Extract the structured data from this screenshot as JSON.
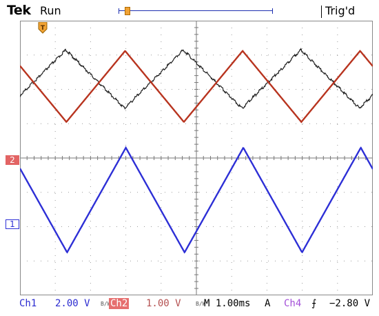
{
  "header": {
    "brand": "Tek",
    "acquisition_state": "Run",
    "trigger_status": "Trig'd"
  },
  "screen": {
    "divisions_x": 10,
    "divisions_y": 8,
    "grid": true,
    "ch1_marker_label": "1",
    "ch2_marker_label": "2",
    "trigger_marker_label": "T"
  },
  "statusbar": {
    "ch1_label": "Ch1",
    "ch1_scale": "2.00 V",
    "ch2_label": "Ch2",
    "ch2_scale": "1.00 V",
    "timebase": "M 1.00ms",
    "trigger_source": "A",
    "trigger_channel": "Ch4",
    "trigger_slope_icon": "rising-edge",
    "trigger_level": "−2.80 V"
  },
  "colors": {
    "ch1": "#2d2fd6",
    "ch2": "#b8341f",
    "ch4": "#1f1f1f",
    "grid": "#9a9a9a",
    "record_bar": "#1d2fb0",
    "trigger": "#f0a234"
  },
  "waveforms": {
    "period_div": 3.33,
    "ch4": {
      "phase_div": 1.75,
      "high_div": 0.85,
      "low_div": 2.55
    },
    "ch2": {
      "phase_div": 0.0,
      "high_div": 0.88,
      "low_div": 2.95
    },
    "ch1": {
      "phase_div": 0.0,
      "high_div": 3.7,
      "low_div": 6.75
    }
  }
}
